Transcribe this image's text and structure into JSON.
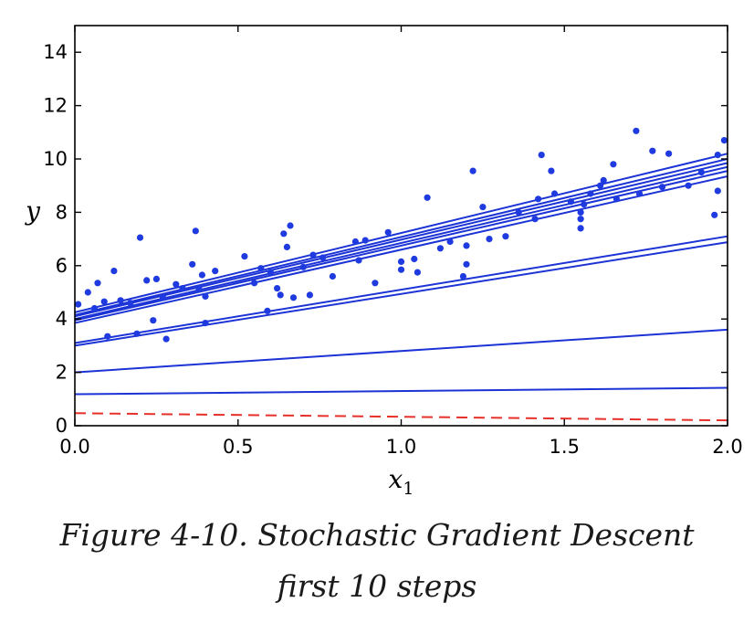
{
  "chart_data": {
    "type": "scatter",
    "xlabel": "x",
    "xlabel_sub": "1",
    "ylabel": "y",
    "xlim": [
      0,
      2
    ],
    "ylim": [
      0,
      15
    ],
    "xticks": [
      "0.0",
      "0.5",
      "1.0",
      "1.5",
      "2.0"
    ],
    "yticks": [
      "0",
      "2",
      "4",
      "6",
      "8",
      "10",
      "12",
      "14"
    ],
    "grid": false,
    "legend": "none",
    "colors": {
      "points": "#1f3be0",
      "lines": "#1c33d6",
      "initial_line": "#e8302a"
    },
    "series": [
      {
        "kind": "points",
        "points": [
          [
            0.01,
            4.55
          ],
          [
            0.04,
            5.0
          ],
          [
            0.06,
            4.4
          ],
          [
            0.07,
            5.35
          ],
          [
            0.09,
            4.65
          ],
          [
            0.1,
            3.35
          ],
          [
            0.12,
            5.8
          ],
          [
            0.14,
            4.7
          ],
          [
            0.17,
            4.6
          ],
          [
            0.19,
            3.45
          ],
          [
            0.2,
            7.05
          ],
          [
            0.22,
            5.45
          ],
          [
            0.24,
            3.95
          ],
          [
            0.25,
            5.5
          ],
          [
            0.27,
            4.8
          ],
          [
            0.28,
            3.25
          ],
          [
            0.31,
            5.3
          ],
          [
            0.33,
            5.15
          ],
          [
            0.36,
            6.05
          ],
          [
            0.37,
            7.3
          ],
          [
            0.38,
            5.15
          ],
          [
            0.39,
            5.65
          ],
          [
            0.4,
            3.85
          ],
          [
            0.4,
            4.85
          ],
          [
            0.43,
            5.8
          ],
          [
            0.52,
            6.35
          ],
          [
            0.55,
            5.35
          ],
          [
            0.57,
            5.9
          ],
          [
            0.59,
            4.3
          ],
          [
            0.6,
            5.75
          ],
          [
            0.62,
            5.15
          ],
          [
            0.63,
            4.9
          ],
          [
            0.64,
            7.2
          ],
          [
            0.65,
            6.7
          ],
          [
            0.66,
            7.5
          ],
          [
            0.67,
            4.8
          ],
          [
            0.7,
            5.95
          ],
          [
            0.72,
            4.9
          ],
          [
            0.73,
            6.4
          ],
          [
            0.76,
            6.3
          ],
          [
            0.79,
            5.6
          ],
          [
            0.86,
            6.9
          ],
          [
            0.87,
            6.2
          ],
          [
            0.89,
            6.95
          ],
          [
            0.92,
            5.35
          ],
          [
            0.96,
            7.25
          ],
          [
            1.0,
            6.15
          ],
          [
            1.0,
            5.85
          ],
          [
            1.04,
            6.25
          ],
          [
            1.05,
            5.75
          ],
          [
            1.08,
            8.55
          ],
          [
            1.12,
            6.65
          ],
          [
            1.15,
            6.9
          ],
          [
            1.19,
            5.6
          ],
          [
            1.2,
            6.05
          ],
          [
            1.2,
            6.75
          ],
          [
            1.22,
            9.55
          ],
          [
            1.25,
            8.2
          ],
          [
            1.27,
            7.0
          ],
          [
            1.32,
            7.1
          ],
          [
            1.36,
            8.0
          ],
          [
            1.41,
            7.75
          ],
          [
            1.42,
            8.5
          ],
          [
            1.43,
            10.15
          ],
          [
            1.46,
            9.55
          ],
          [
            1.47,
            8.7
          ],
          [
            1.52,
            8.4
          ],
          [
            1.55,
            8.0
          ],
          [
            1.55,
            7.75
          ],
          [
            1.55,
            7.4
          ],
          [
            1.56,
            8.3
          ],
          [
            1.58,
            8.7
          ],
          [
            1.61,
            9.0
          ],
          [
            1.62,
            9.2
          ],
          [
            1.65,
            9.8
          ],
          [
            1.66,
            8.5
          ],
          [
            1.72,
            11.05
          ],
          [
            1.73,
            8.7
          ],
          [
            1.77,
            10.3
          ],
          [
            1.8,
            8.95
          ],
          [
            1.82,
            10.2
          ],
          [
            1.88,
            9.0
          ],
          [
            1.92,
            9.5
          ],
          [
            1.96,
            7.9
          ],
          [
            1.97,
            8.8
          ],
          [
            1.97,
            10.15
          ],
          [
            1.99,
            10.7
          ]
        ]
      },
      {
        "kind": "initial",
        "style": "dashed",
        "x": [
          0,
          2
        ],
        "y": [
          0.47,
          0.2
        ]
      },
      {
        "kind": "step",
        "x": [
          0,
          2
        ],
        "y": [
          1.18,
          1.42
        ]
      },
      {
        "kind": "step",
        "x": [
          0,
          2
        ],
        "y": [
          2.0,
          3.6
        ]
      },
      {
        "kind": "step",
        "x": [
          0,
          2
        ],
        "y": [
          3.0,
          6.88
        ]
      },
      {
        "kind": "step",
        "x": [
          0,
          2
        ],
        "y": [
          3.1,
          7.1
        ]
      },
      {
        "kind": "step",
        "x": [
          0,
          2
        ],
        "y": [
          3.85,
          9.35
        ]
      },
      {
        "kind": "step",
        "x": [
          0,
          2
        ],
        "y": [
          3.95,
          9.55
        ]
      },
      {
        "kind": "step",
        "x": [
          0,
          2
        ],
        "y": [
          4.0,
          9.7
        ]
      },
      {
        "kind": "step",
        "x": [
          0,
          2
        ],
        "y": [
          4.1,
          9.85
        ]
      },
      {
        "kind": "step",
        "x": [
          0,
          2
        ],
        "y": [
          4.15,
          10.0
        ]
      },
      {
        "kind": "step",
        "x": [
          0,
          2
        ],
        "y": [
          4.25,
          10.2
        ]
      }
    ]
  },
  "caption": {
    "line1": "Figure 4-10. Stochastic Gradient Descent",
    "line2": "first 10 steps"
  }
}
